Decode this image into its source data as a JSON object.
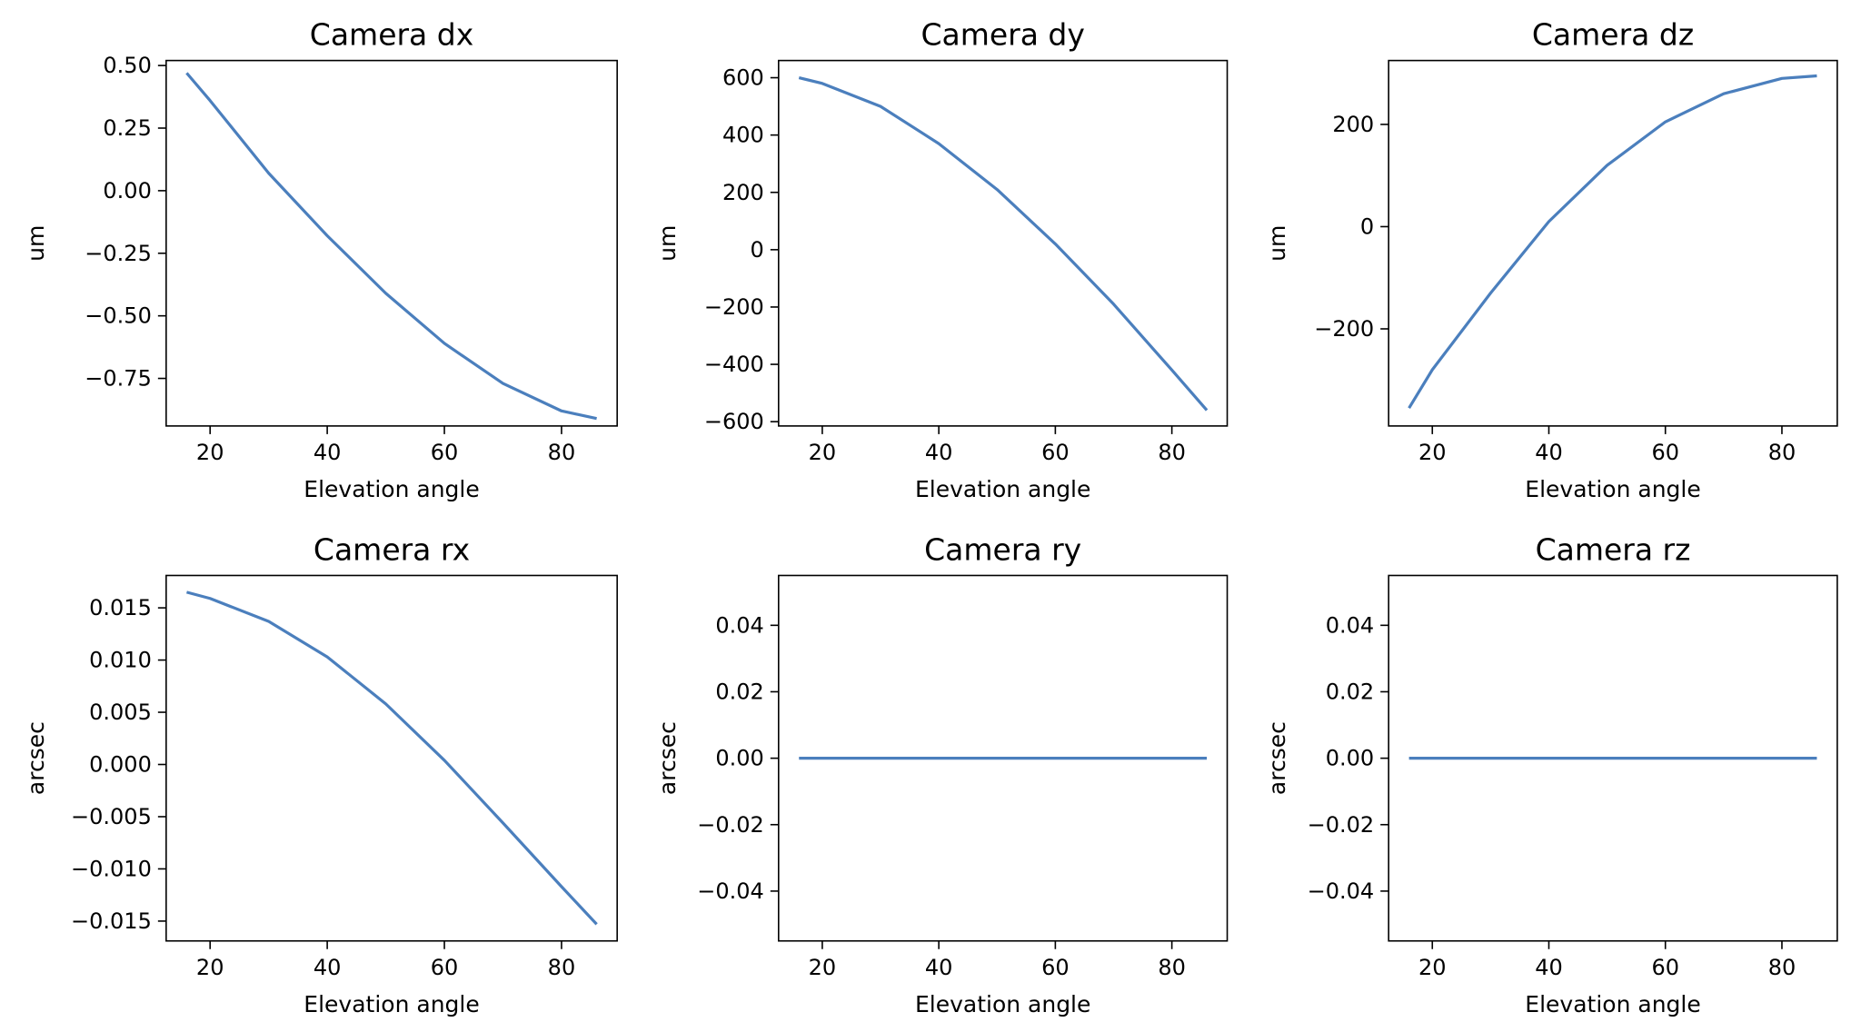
{
  "figure": {
    "background": "#ffffff",
    "line_color": "#4b7fbd"
  },
  "chart_data": [
    {
      "type": "line",
      "title": "Camera dx",
      "xlabel": "Elevation angle",
      "ylabel": "um",
      "xlim": [
        12.5,
        89.5
      ],
      "ylim": [
        -0.94,
        0.52
      ],
      "xticks": [
        20,
        40,
        60,
        80
      ],
      "xtick_labels": [
        "20",
        "40",
        "60",
        "80"
      ],
      "yticks": [
        0.5,
        0.25,
        0.0,
        -0.25,
        -0.5,
        -0.75
      ],
      "ytick_labels": [
        "0.50",
        "0.25",
        "0.00",
        "−0.25",
        "−0.50",
        "−0.75"
      ],
      "grid": false,
      "series": [
        {
          "x": [
            16,
            20,
            30,
            40,
            50,
            60,
            70,
            80,
            86
          ],
          "y": [
            0.47,
            0.36,
            0.07,
            -0.18,
            -0.41,
            -0.61,
            -0.77,
            -0.88,
            -0.91
          ]
        }
      ]
    },
    {
      "type": "line",
      "title": "Camera dy",
      "xlabel": "Elevation angle",
      "ylabel": "um",
      "xlim": [
        12.5,
        89.5
      ],
      "ylim": [
        -615,
        660
      ],
      "xticks": [
        20,
        40,
        60,
        80
      ],
      "xtick_labels": [
        "20",
        "40",
        "60",
        "80"
      ],
      "yticks": [
        600,
        400,
        200,
        0,
        -200,
        -400,
        -600
      ],
      "ytick_labels": [
        "600",
        "400",
        "200",
        "0",
        "−200",
        "−400",
        "−600"
      ],
      "grid": false,
      "series": [
        {
          "x": [
            16,
            20,
            30,
            40,
            50,
            60,
            70,
            80,
            86
          ],
          "y": [
            600,
            580,
            500,
            370,
            210,
            20,
            -190,
            -420,
            -560
          ]
        }
      ]
    },
    {
      "type": "line",
      "title": "Camera dz",
      "xlabel": "Elevation angle",
      "ylabel": "um",
      "xlim": [
        12.5,
        89.5
      ],
      "ylim": [
        -390,
        325
      ],
      "xticks": [
        20,
        40,
        60,
        80
      ],
      "xtick_labels": [
        "20",
        "40",
        "60",
        "80"
      ],
      "yticks": [
        200,
        0,
        -200
      ],
      "ytick_labels": [
        "200",
        "0",
        "−200"
      ],
      "grid": false,
      "series": [
        {
          "x": [
            16,
            20,
            30,
            40,
            50,
            60,
            70,
            80,
            86
          ],
          "y": [
            -355,
            -280,
            -130,
            10,
            120,
            205,
            260,
            290,
            295
          ]
        }
      ]
    },
    {
      "type": "line",
      "title": "Camera rx",
      "xlabel": "Elevation angle",
      "ylabel": "arcsec",
      "xlim": [
        12.5,
        89.5
      ],
      "ylim": [
        -0.0169,
        0.0181
      ],
      "xticks": [
        20,
        40,
        60,
        80
      ],
      "xtick_labels": [
        "20",
        "40",
        "60",
        "80"
      ],
      "yticks": [
        0.015,
        0.01,
        0.005,
        0.0,
        -0.005,
        -0.01,
        -0.015
      ],
      "ytick_labels": [
        "0.015",
        "0.010",
        "0.005",
        "0.000",
        "−0.005",
        "−0.010",
        "−0.015"
      ],
      "grid": false,
      "series": [
        {
          "x": [
            16,
            20,
            30,
            40,
            50,
            60,
            70,
            80,
            86
          ],
          "y": [
            0.0165,
            0.0159,
            0.0137,
            0.0103,
            0.0058,
            0.0004,
            -0.0056,
            -0.0117,
            -0.0153
          ]
        }
      ]
    },
    {
      "type": "line",
      "title": "Camera ry",
      "xlabel": "Elevation angle",
      "ylabel": "arcsec",
      "xlim": [
        12.5,
        89.5
      ],
      "ylim": [
        -0.055,
        0.055
      ],
      "xticks": [
        20,
        40,
        60,
        80
      ],
      "xtick_labels": [
        "20",
        "40",
        "60",
        "80"
      ],
      "yticks": [
        0.04,
        0.02,
        0.0,
        -0.02,
        -0.04
      ],
      "ytick_labels": [
        "0.04",
        "0.02",
        "0.00",
        "−0.02",
        "−0.04"
      ],
      "grid": false,
      "series": [
        {
          "x": [
            16,
            86
          ],
          "y": [
            0.0,
            0.0
          ]
        }
      ]
    },
    {
      "type": "line",
      "title": "Camera rz",
      "xlabel": "Elevation angle",
      "ylabel": "arcsec",
      "xlim": [
        12.5,
        89.5
      ],
      "ylim": [
        -0.055,
        0.055
      ],
      "xticks": [
        20,
        40,
        60,
        80
      ],
      "xtick_labels": [
        "20",
        "40",
        "60",
        "80"
      ],
      "yticks": [
        0.04,
        0.02,
        0.0,
        -0.02,
        -0.04
      ],
      "ytick_labels": [
        "0.04",
        "0.02",
        "0.00",
        "−0.02",
        "−0.04"
      ],
      "grid": false,
      "series": [
        {
          "x": [
            16,
            86
          ],
          "y": [
            0.0,
            0.0
          ]
        }
      ]
    }
  ]
}
